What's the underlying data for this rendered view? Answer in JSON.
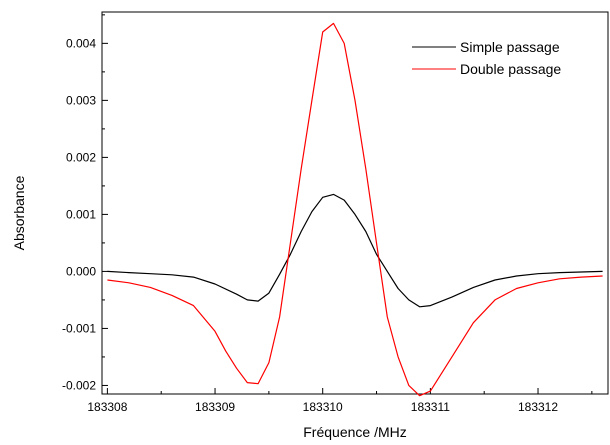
{
  "chart_data": {
    "type": "line",
    "title": "",
    "xlabel": "Fréquence /MHz",
    "ylabel": "Absorbance",
    "xlim": [
      183307.95,
      183312.65
    ],
    "ylim": [
      -0.00215,
      0.00455
    ],
    "x_ticks": [
      183308,
      183309,
      183310,
      183311,
      183312
    ],
    "x_tick_labels": [
      "183308",
      "183309",
      "183310",
      "183311",
      "183312"
    ],
    "y_ticks": [
      -0.002,
      -0.001,
      0.0,
      0.001,
      0.002,
      0.003,
      0.004
    ],
    "y_tick_labels": [
      "-0.002",
      "-0.001",
      "0.000",
      "0.001",
      "0.002",
      "0.003",
      "0.004"
    ],
    "grid": false,
    "legend_position": "top-right",
    "series": [
      {
        "name": "Simple passage",
        "color": "#000000",
        "points": [
          [
            183308.0,
            0.0
          ],
          [
            183308.2,
            -2e-05
          ],
          [
            183308.4,
            -4e-05
          ],
          [
            183308.6,
            -6e-05
          ],
          [
            183308.8,
            -0.0001
          ],
          [
            183309.0,
            -0.00022
          ],
          [
            183309.2,
            -0.0004
          ],
          [
            183309.3,
            -0.0005
          ],
          [
            183309.4,
            -0.00052
          ],
          [
            183309.5,
            -0.00038
          ],
          [
            183309.6,
            -5e-05
          ],
          [
            183309.7,
            0.0003
          ],
          [
            183309.8,
            0.0007
          ],
          [
            183309.9,
            0.00105
          ],
          [
            183310.0,
            0.0013
          ],
          [
            183310.1,
            0.00135
          ],
          [
            183310.2,
            0.00125
          ],
          [
            183310.3,
            0.001
          ],
          [
            183310.4,
            0.0007
          ],
          [
            183310.5,
            0.0003
          ],
          [
            183310.6,
            0.0
          ],
          [
            183310.7,
            -0.0003
          ],
          [
            183310.8,
            -0.0005
          ],
          [
            183310.9,
            -0.00062
          ],
          [
            183311.0,
            -0.0006
          ],
          [
            183311.2,
            -0.00045
          ],
          [
            183311.4,
            -0.00028
          ],
          [
            183311.6,
            -0.00015
          ],
          [
            183311.8,
            -8e-05
          ],
          [
            183312.0,
            -4e-05
          ],
          [
            183312.2,
            -2e-05
          ],
          [
            183312.4,
            -1e-05
          ],
          [
            183312.6,
            0.0
          ]
        ]
      },
      {
        "name": "Double passage",
        "color": "#ff0000",
        "points": [
          [
            183308.0,
            -0.00015
          ],
          [
            183308.2,
            -0.0002
          ],
          [
            183308.4,
            -0.00028
          ],
          [
            183308.6,
            -0.00042
          ],
          [
            183308.8,
            -0.0006
          ],
          [
            183309.0,
            -0.00105
          ],
          [
            183309.1,
            -0.0014
          ],
          [
            183309.2,
            -0.0017
          ],
          [
            183309.3,
            -0.00195
          ],
          [
            183309.4,
            -0.00197
          ],
          [
            183309.5,
            -0.0016
          ],
          [
            183309.6,
            -0.0008
          ],
          [
            183309.7,
            0.0005
          ],
          [
            183309.8,
            0.0018
          ],
          [
            183309.9,
            0.003
          ],
          [
            183310.0,
            0.0042
          ],
          [
            183310.1,
            0.00435
          ],
          [
            183310.2,
            0.004
          ],
          [
            183310.3,
            0.003
          ],
          [
            183310.4,
            0.0018
          ],
          [
            183310.5,
            0.0005
          ],
          [
            183310.6,
            -0.0008
          ],
          [
            183310.7,
            -0.0015
          ],
          [
            183310.8,
            -0.002
          ],
          [
            183310.9,
            -0.00218
          ],
          [
            183311.0,
            -0.0021
          ],
          [
            183311.2,
            -0.0015
          ],
          [
            183311.4,
            -0.0009
          ],
          [
            183311.6,
            -0.0005
          ],
          [
            183311.8,
            -0.0003
          ],
          [
            183312.0,
            -0.0002
          ],
          [
            183312.2,
            -0.00013
          ],
          [
            183312.4,
            -0.0001
          ],
          [
            183312.6,
            -8e-05
          ]
        ]
      }
    ]
  }
}
